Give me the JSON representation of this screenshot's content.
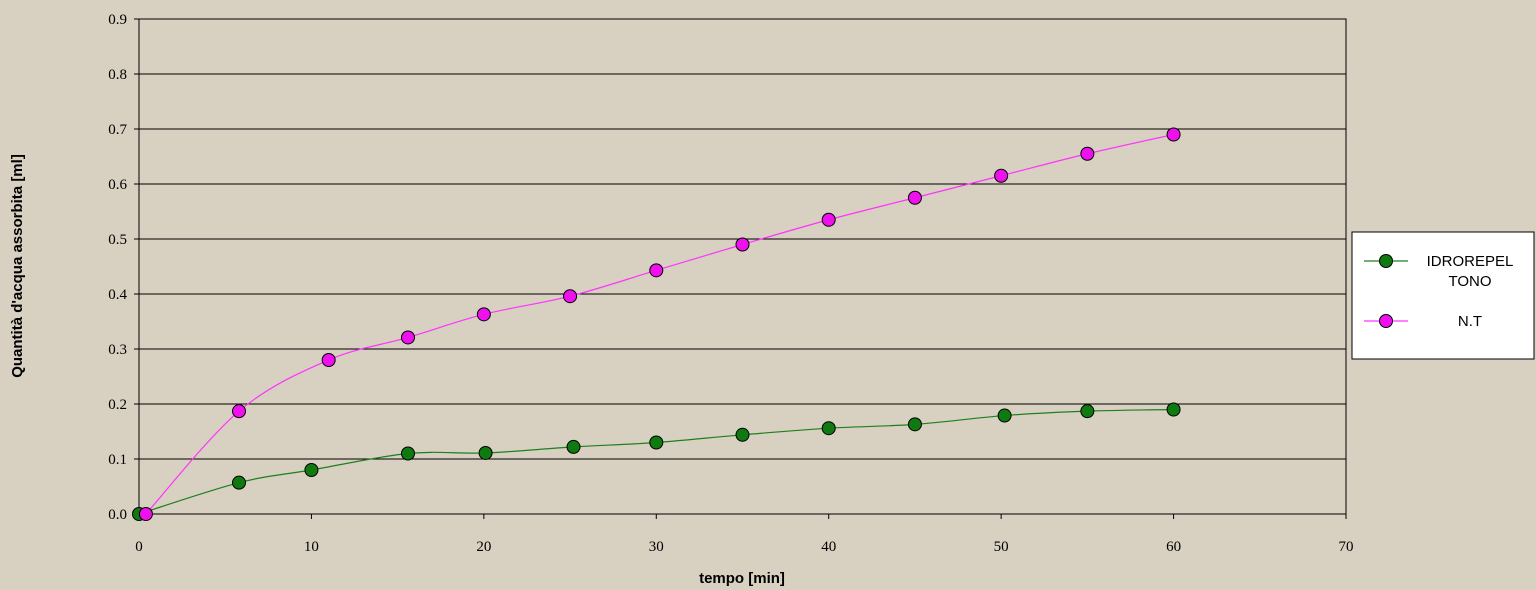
{
  "chart_data": {
    "type": "line",
    "xlabel": "tempo [min]",
    "ylabel": "Quantità d'acqua assorbita [ml]",
    "xlim": [
      0,
      70
    ],
    "ylim": [
      0,
      0.9
    ],
    "xticks": [
      "0",
      "10",
      "20",
      "30",
      "40",
      "50",
      "60",
      "70"
    ],
    "yticks": [
      "0.0",
      "0.1",
      "0.2",
      "0.3",
      "0.4",
      "0.5",
      "0.6",
      "0.7",
      "0.8",
      "0.9"
    ],
    "grid": "horizontal",
    "legend_position": "right",
    "series": [
      {
        "name": "IDROREPEL TONO",
        "legend_lines": [
          "IDROREPEL",
          "TONO"
        ],
        "color": "#1f7f1f",
        "marker_color": "#0f7a0f",
        "x": [
          0,
          5.8,
          10,
          15.6,
          20.1,
          25.2,
          30,
          35,
          40,
          45,
          50.2,
          55,
          60
        ],
        "y": [
          0,
          0.057,
          0.08,
          0.11,
          0.111,
          0.122,
          0.13,
          0.144,
          0.156,
          0.163,
          0.179,
          0.187,
          0.19
        ]
      },
      {
        "name": "N.T",
        "legend_lines": [
          "N.T"
        ],
        "color": "#ff33ff",
        "marker_color": "#ee11ee",
        "x": [
          0.4,
          5.8,
          11,
          15.6,
          20,
          25,
          30,
          35,
          40,
          45,
          50,
          55,
          60
        ],
        "y": [
          0,
          0.187,
          0.28,
          0.321,
          0.363,
          0.396,
          0.443,
          0.49,
          0.535,
          0.575,
          0.615,
          0.655,
          0.69
        ]
      }
    ]
  }
}
